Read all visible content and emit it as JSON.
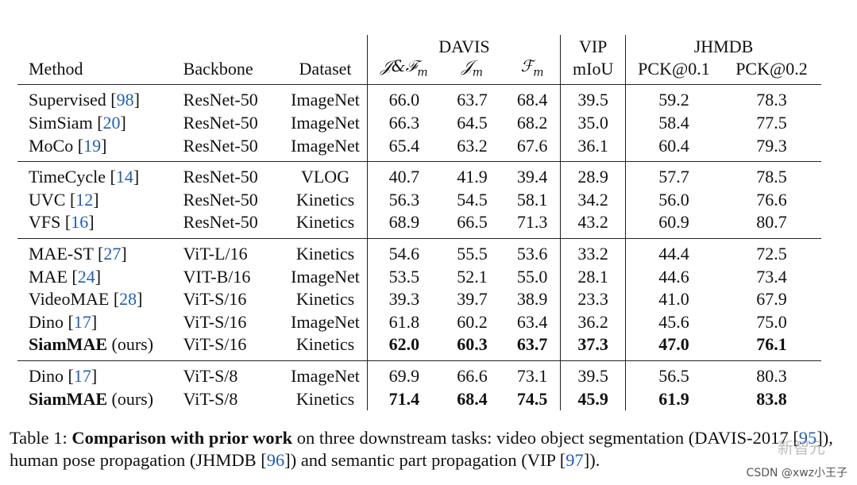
{
  "header": {
    "groups": [
      "DAVIS",
      "VIP",
      "JHMDB"
    ],
    "method": "Method",
    "backbone": "Backbone",
    "dataset": "Dataset",
    "davis_jf": "𝒥&ℱ",
    "davis_jf_sub": "m",
    "davis_j": "𝒥",
    "davis_j_sub": "m",
    "davis_f": "ℱ",
    "davis_f_sub": "m",
    "vip": "mIoU",
    "pck1": "PCK@0.1",
    "pck2": "PCK@0.2"
  },
  "groups": [
    {
      "rows": [
        {
          "method": "Supervised",
          "ref": "98",
          "backbone": "ResNet-50",
          "dataset": "ImageNet",
          "jf": "66.0",
          "j": "63.7",
          "f": "68.4",
          "vip": "39.5",
          "pck1": "59.2",
          "pck2": "78.3"
        },
        {
          "method": "SimSiam",
          "ref": "20",
          "backbone": "ResNet-50",
          "dataset": "ImageNet",
          "jf": "66.3",
          "j": "64.5",
          "f": "68.2",
          "vip": "35.0",
          "pck1": "58.4",
          "pck2": "77.5"
        },
        {
          "method": "MoCo",
          "ref": "19",
          "backbone": "ResNet-50",
          "dataset": "ImageNet",
          "jf": "65.4",
          "j": "63.2",
          "f": "67.6",
          "vip": "36.1",
          "pck1": "60.4",
          "pck2": "79.3"
        }
      ]
    },
    {
      "rows": [
        {
          "method": "TimeCycle",
          "ref": "14",
          "backbone": "ResNet-50",
          "dataset": "VLOG",
          "jf": "40.7",
          "j": "41.9",
          "f": "39.4",
          "vip": "28.9",
          "pck1": "57.7",
          "pck2": "78.5"
        },
        {
          "method": "UVC",
          "ref": "12",
          "backbone": "ResNet-50",
          "dataset": "Kinetics",
          "jf": "56.3",
          "j": "54.5",
          "f": "58.1",
          "vip": "34.2",
          "pck1": "56.0",
          "pck2": "76.6"
        },
        {
          "method": "VFS",
          "ref": "16",
          "backbone": "ResNet-50",
          "dataset": "Kinetics",
          "jf": "68.9",
          "j": "66.5",
          "f": "71.3",
          "vip": "43.2",
          "pck1": "60.9",
          "pck2": "80.7"
        }
      ]
    },
    {
      "rows": [
        {
          "method": "MAE-ST",
          "ref": "27",
          "backbone": "ViT-L/16",
          "dataset": "Kinetics",
          "jf": "54.6",
          "j": "55.5",
          "f": "53.6",
          "vip": "33.2",
          "pck1": "44.4",
          "pck2": "72.5"
        },
        {
          "method": "MAE",
          "ref": "24",
          "backbone": "VIT-B/16",
          "dataset": "ImageNet",
          "jf": "53.5",
          "j": "52.1",
          "f": "55.0",
          "vip": "28.1",
          "pck1": "44.6",
          "pck2": "73.4"
        },
        {
          "method": "VideoMAE",
          "ref": "28",
          "backbone": "ViT-S/16",
          "dataset": "Kinetics",
          "jf": "39.3",
          "j": "39.7",
          "f": "38.9",
          "vip": "23.3",
          "pck1": "41.0",
          "pck2": "67.9"
        },
        {
          "method": "Dino",
          "ref": "17",
          "backbone": "ViT-S/16",
          "dataset": "ImageNet",
          "jf": "61.8",
          "j": "60.2",
          "f": "63.4",
          "vip": "36.2",
          "pck1": "45.6",
          "pck2": "75.0"
        },
        {
          "method": "SiamMAE",
          "suffix": "(ours)",
          "bold": true,
          "backbone": "ViT-S/16",
          "dataset": "Kinetics",
          "jf": "62.0",
          "j": "60.3",
          "f": "63.7",
          "vip": "37.3",
          "pck1": "47.0",
          "pck2": "76.1"
        }
      ]
    },
    {
      "rows": [
        {
          "method": "Dino",
          "ref": "17",
          "backbone": "ViT-S/8",
          "dataset": "ImageNet",
          "jf": "69.9",
          "j": "66.6",
          "f": "73.1",
          "vip": "39.5",
          "pck1": "56.5",
          "pck2": "80.3"
        },
        {
          "method": "SiamMAE",
          "suffix": "(ours)",
          "bold": true,
          "backbone": "ViT-S/8",
          "dataset": "Kinetics",
          "jf": "71.4",
          "j": "68.4",
          "f": "74.5",
          "vip": "45.9",
          "pck1": "61.9",
          "pck2": "83.8"
        }
      ]
    }
  ],
  "caption": {
    "label": "Table 1:",
    "title": "Comparison with prior work",
    "text1": "on three downstream tasks: video object segmentation (DAVIS-2017 [",
    "ref1": "95",
    "text2": "]), human pose propagation (JHMDB [",
    "ref2": "96",
    "text3": "]) and semantic part propagation (VIP [",
    "ref3": "97",
    "text4": "])."
  },
  "watermark": {
    "logo_text": "新智元",
    "credit": "CSDN @xwz小王子"
  }
}
